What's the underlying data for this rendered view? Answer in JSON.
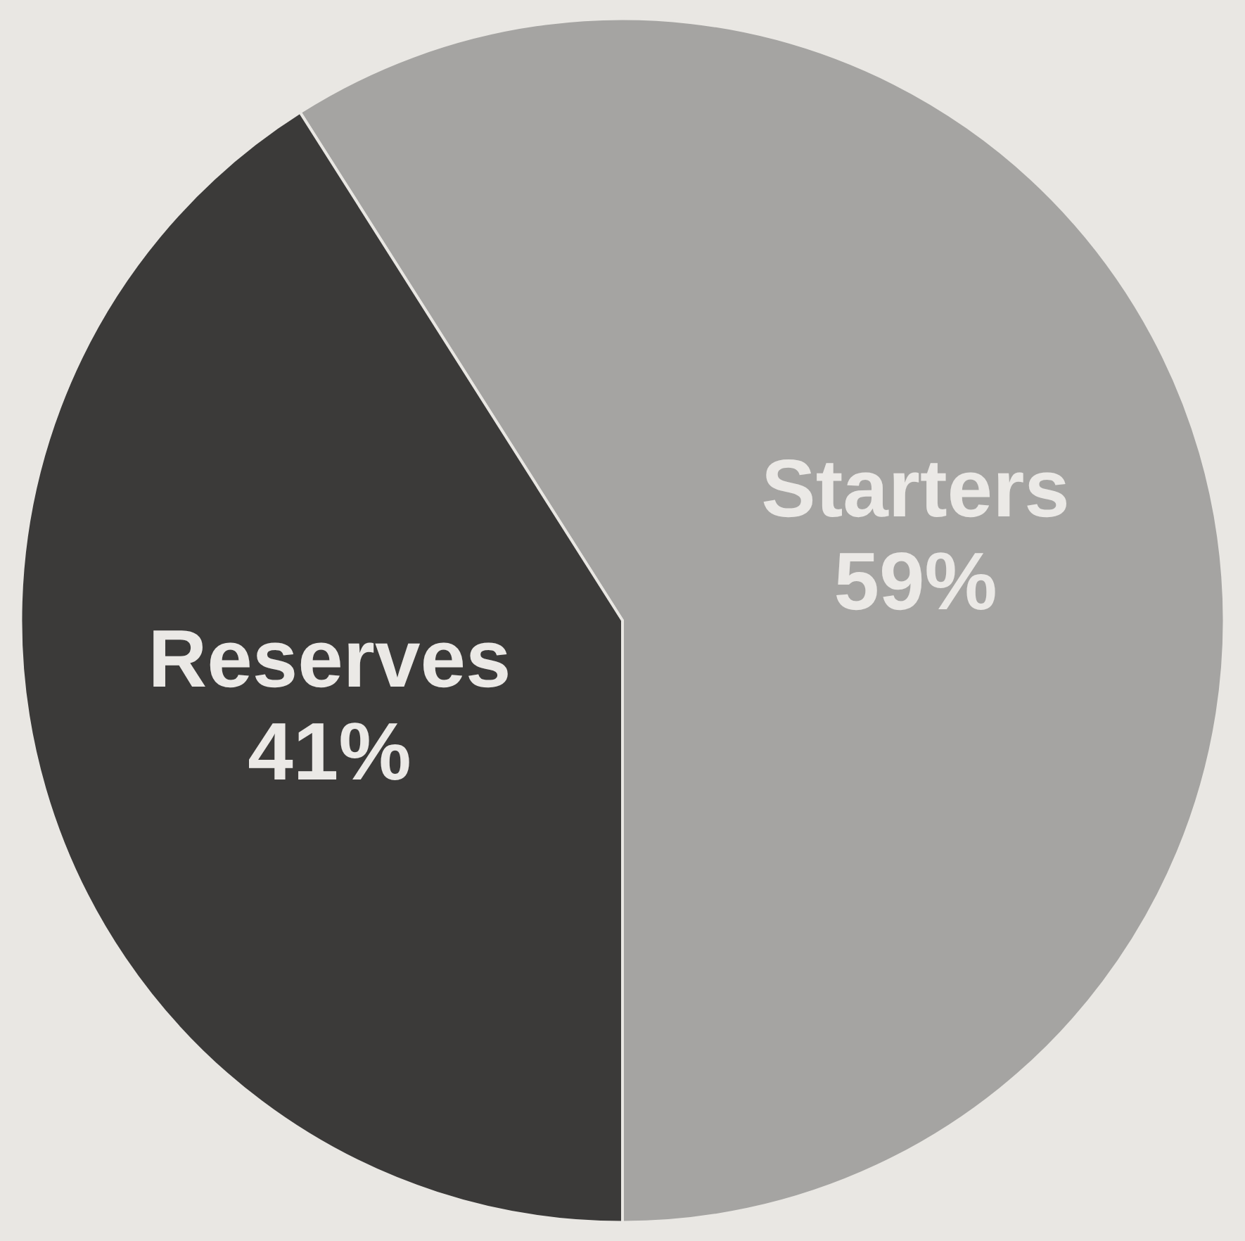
{
  "chart_data": {
    "type": "pie",
    "categories": [
      "Starters",
      "Reserves"
    ],
    "values": [
      59,
      41
    ],
    "value_labels": [
      "59%",
      "41%"
    ],
    "colors": [
      "#a5a4a2",
      "#3b3a39"
    ]
  }
}
